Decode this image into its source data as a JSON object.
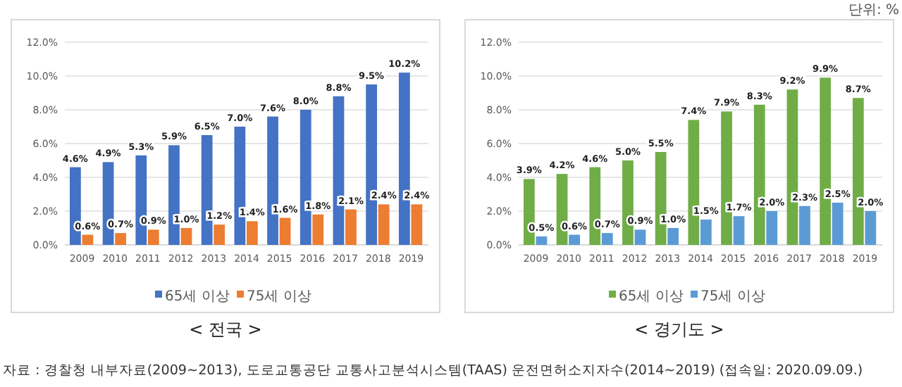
{
  "chart_data": [
    {
      "type": "bar",
      "title": "< 전국 >",
      "categories": [
        "2009",
        "2010",
        "2011",
        "2012",
        "2013",
        "2014",
        "2015",
        "2016",
        "2017",
        "2018",
        "2019"
      ],
      "series": [
        {
          "name": "65세 이상",
          "color": "#4472c4",
          "values": [
            4.6,
            4.9,
            5.3,
            5.9,
            6.5,
            7.0,
            7.6,
            8.0,
            8.8,
            9.5,
            10.2
          ],
          "value_labels": [
            "4.6%",
            "4.9%",
            "5.3%",
            "5.9%",
            "6.5%",
            "7.0%",
            "7.6%",
            "8.0%",
            "8.8%",
            "9.5%",
            "10.2%"
          ]
        },
        {
          "name": "75세 이상",
          "color": "#ed7d31",
          "values": [
            0.6,
            0.7,
            0.9,
            1.0,
            1.2,
            1.4,
            1.6,
            1.8,
            2.1,
            2.4,
            2.4
          ],
          "value_labels": [
            "0.6%",
            "0.7%",
            "0.9%",
            "1.0%",
            "1.2%",
            "1.4%",
            "1.6%",
            "1.8%",
            "2.1%",
            "2.4%",
            "2.4%"
          ]
        }
      ],
      "ylim": [
        0,
        12
      ],
      "yticks": [
        {
          "value": 0,
          "label": "0.0%"
        },
        {
          "value": 2,
          "label": "2.0%"
        },
        {
          "value": 4,
          "label": "4.0%"
        },
        {
          "value": 6,
          "label": "6.0%"
        },
        {
          "value": 8,
          "label": "8.0%"
        },
        {
          "value": 10,
          "label": "10.0%"
        },
        {
          "value": 12,
          "label": "12.0%"
        }
      ],
      "grid": "y",
      "legend": "bottom",
      "annotations": [
        "자료 : 경찰청 내부자료(2009~2013), 도로교통공단 교통사고분석시스템(TAAS) 운전면허소지자수(2014~2019) (접속일: 2020.09.09.)"
      ]
    },
    {
      "type": "bar",
      "title": "< 경기도 >",
      "categories": [
        "2009",
        "2010",
        "2011",
        "2012",
        "2013",
        "2014",
        "2015",
        "2016",
        "2017",
        "2018",
        "2019"
      ],
      "series": [
        {
          "name": "65세 이상",
          "color": "#70ad47",
          "values": [
            3.9,
            4.2,
            4.6,
            5.0,
            5.5,
            7.4,
            7.9,
            8.3,
            9.2,
            9.9,
            8.7
          ],
          "value_labels": [
            "3.9%",
            "4.2%",
            "4.6%",
            "5.0%",
            "5.5%",
            "7.4%",
            "7.9%",
            "8.3%",
            "9.2%",
            "9.9%",
            "8.7%"
          ]
        },
        {
          "name": "75세 이상",
          "color": "#5b9bd5",
          "values": [
            0.5,
            0.6,
            0.7,
            0.9,
            1.0,
            1.5,
            1.7,
            2.0,
            2.3,
            2.5,
            2.0
          ],
          "value_labels": [
            "0.5%",
            "0.6%",
            "0.7%",
            "0.9%",
            "1.0%",
            "1.5%",
            "1.7%",
            "2.0%",
            "2.3%",
            "2.5%",
            "2.0%"
          ]
        }
      ],
      "ylim": [
        0,
        12
      ],
      "yticks": [
        {
          "value": 0,
          "label": "0.0%"
        },
        {
          "value": 2,
          "label": "2.0%"
        },
        {
          "value": 4,
          "label": "4.0%"
        },
        {
          "value": 6,
          "label": "6.0%"
        },
        {
          "value": 8,
          "label": "8.0%"
        },
        {
          "value": 10,
          "label": "10.0%"
        },
        {
          "value": 12,
          "label": "12.0%"
        }
      ],
      "grid": "y",
      "legend": "bottom",
      "annotations": [
        "단위: %"
      ]
    }
  ]
}
